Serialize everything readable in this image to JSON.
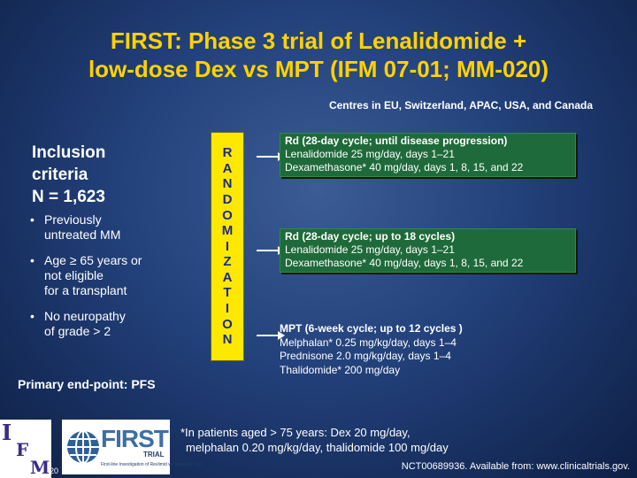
{
  "title": {
    "line1": "FIRST: Phase 3 trial of Lenalidomide +",
    "line2": "low-dose Dex vs MPT (IFM 07-01; MM-020)"
  },
  "centres": "Centres in EU, Switzerland, APAC, USA, and Canada",
  "inclusion": {
    "line1": "Inclusion",
    "line2": "criteria",
    "line3": "N = 1,623",
    "bullets": [
      {
        "l1": "Previously",
        "l2": "untreated MM",
        "l3": ""
      },
      {
        "l1": "Age ≥ 65 years or",
        "l2": "not eligible",
        "l3": "for a transplant"
      },
      {
        "l1": "No neuropathy",
        "l2": "of grade > 2",
        "l3": ""
      }
    ]
  },
  "endpoint": "Primary end-point: PFS",
  "randomization_letters": [
    "R",
    "A",
    "N",
    "D",
    "O",
    "M",
    "I",
    "Z",
    "A",
    "T",
    "I",
    "O",
    "N"
  ],
  "arms": [
    {
      "header": "Rd (28-day cycle; until disease progression)",
      "lines": [
        "Lenalidomide 25 mg/day, days 1–21",
        "Dexamethasone* 40 mg/day, days 1, 8, 15, and 22"
      ]
    },
    {
      "header": "Rd (28-day cycle; up to 18 cycles)",
      "lines": [
        "Lenalidomide 25 mg/day, days 1–21",
        "Dexamethasone* 40 mg/day, days 1, 8, 15, and 22"
      ]
    },
    {
      "header": "MPT (6-week cycle; up to 12 cycles )",
      "lines": [
        "Melphalan* 0.25 mg/kg/day, days 1–4",
        "Prednisone 2.0 mg/kg/day, days 1–4",
        "Thalidomide* 200 mg/day"
      ]
    }
  ],
  "footnote": {
    "line1": "*In patients aged > 75 years: Dex 20 mg/day,",
    "line2": "melphalan 0.20 mg/kg/day, thalidomide 100 mg/day"
  },
  "nct": "NCT00689936. Available from: www.clinicaltrials.gov.",
  "logos": {
    "ifm_letters": [
      "I",
      "F",
      "M"
    ],
    "year_fragment": "20",
    "first_word": "FIRST",
    "first_trial": "TRIAL",
    "first_subtitle": "First-line Investigation of Revlimid vs Standard Thal"
  },
  "colors": {
    "title": "#ffd200",
    "randomization_box": "#ffe800",
    "randomization_text": "#1a2a8a",
    "arm_box": "#1f6a3a",
    "background": "#22407a"
  }
}
